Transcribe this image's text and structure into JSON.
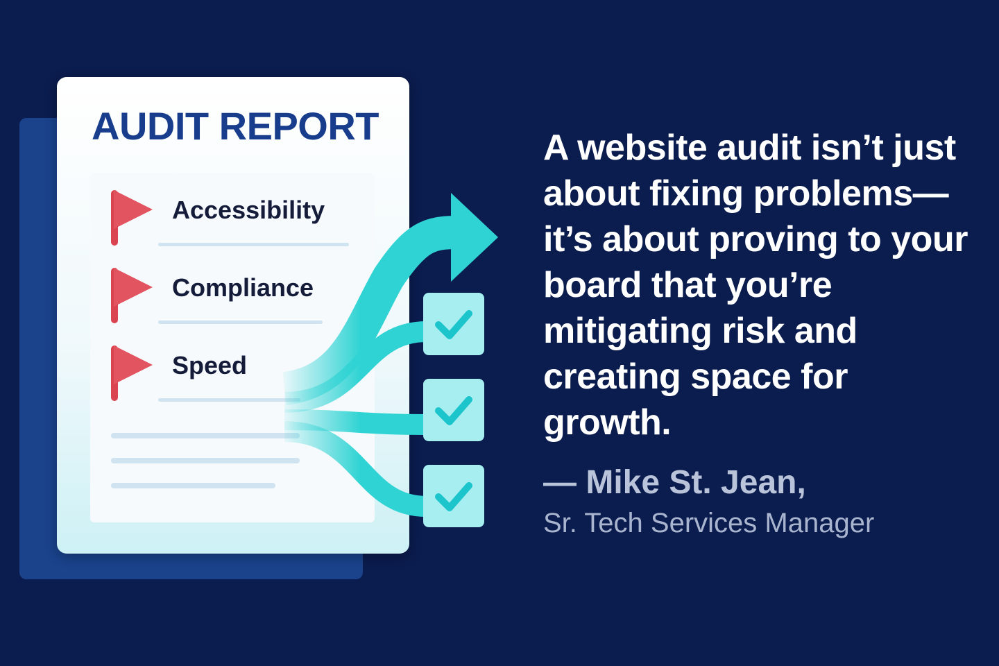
{
  "report": {
    "title": "AUDIT REPORT",
    "items": [
      {
        "label": "Accessibility",
        "icon": "red-flag-icon"
      },
      {
        "label": "Compliance",
        "icon": "red-flag-icon"
      },
      {
        "label": "Speed",
        "icon": "red-flag-icon"
      }
    ]
  },
  "checks": [
    {
      "icon": "checkmark-icon"
    },
    {
      "icon": "checkmark-icon"
    },
    {
      "icon": "checkmark-icon"
    }
  ],
  "quote": {
    "text": "A website audit isn’t just about fixing problems—it’s about proving to your board that you’re mitigating risk and creating space for growth.",
    "author": "— Mike St. Jean,",
    "role": "Sr. Tech Services Manager"
  },
  "colors": {
    "background": "#0b1c4e",
    "title": "#173d8c",
    "flag": "#e0505a",
    "arrow": "#2fd3d3",
    "check_box": "#a6eef0"
  }
}
